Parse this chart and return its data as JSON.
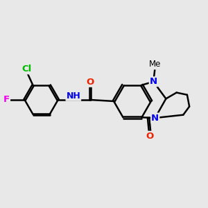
{
  "background_color": "#e8e8e8",
  "bond_color": "#000000",
  "bond_width": 1.8,
  "atom_labels": {
    "Cl": {
      "color": "#00bb00",
      "fontsize": 9.5,
      "fontweight": "bold"
    },
    "F": {
      "color": "#ee00ee",
      "fontsize": 9.5,
      "fontweight": "bold"
    },
    "O": {
      "color": "#ee2200",
      "fontsize": 9.5,
      "fontweight": "bold"
    },
    "N": {
      "color": "#0000ee",
      "fontsize": 9.5,
      "fontweight": "bold"
    },
    "NH": {
      "color": "#0000ee",
      "fontsize": 9.0,
      "fontweight": "bold"
    },
    "Me": {
      "color": "#000000",
      "fontsize": 8.5,
      "fontweight": "normal"
    }
  },
  "xlim": [
    -4.2,
    3.2
  ],
  "ylim": [
    -2.3,
    2.3
  ],
  "figsize": [
    3.0,
    3.0
  ],
  "dpi": 100
}
